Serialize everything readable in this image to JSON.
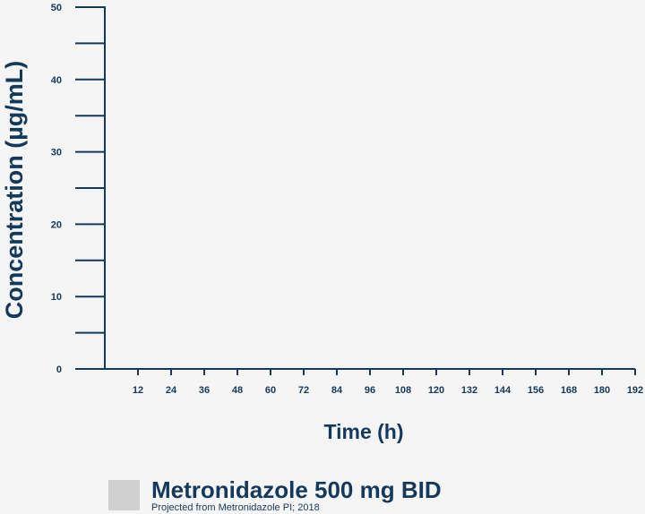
{
  "chart_data": {
    "type": "line",
    "title": "",
    "xlabel": "Time (h)",
    "ylabel": "Concentration (µg/mL)",
    "xlim": [
      0,
      192
    ],
    "ylim": [
      0,
      50
    ],
    "x_ticks": [
      12,
      24,
      36,
      48,
      60,
      72,
      84,
      96,
      108,
      120,
      132,
      144,
      156,
      168,
      180,
      192
    ],
    "y_tick_labels": [
      0,
      10,
      20,
      30,
      40,
      50
    ],
    "y_minor_ticks": [
      5,
      15,
      25,
      35,
      45
    ],
    "grid": false,
    "legend_position": "bottom",
    "series": [
      {
        "name": "Metronidazole 500 mg BID",
        "color": "#d0d0d0",
        "x": [],
        "y": []
      }
    ]
  },
  "legend": {
    "title": "Metronidazole 500 mg BID",
    "source": "Projected from Metronidazole PI; 2018",
    "swatch_color": "#d0d0d0"
  },
  "colors": {
    "axis": "#14395b",
    "background": "#f5f5f5"
  }
}
